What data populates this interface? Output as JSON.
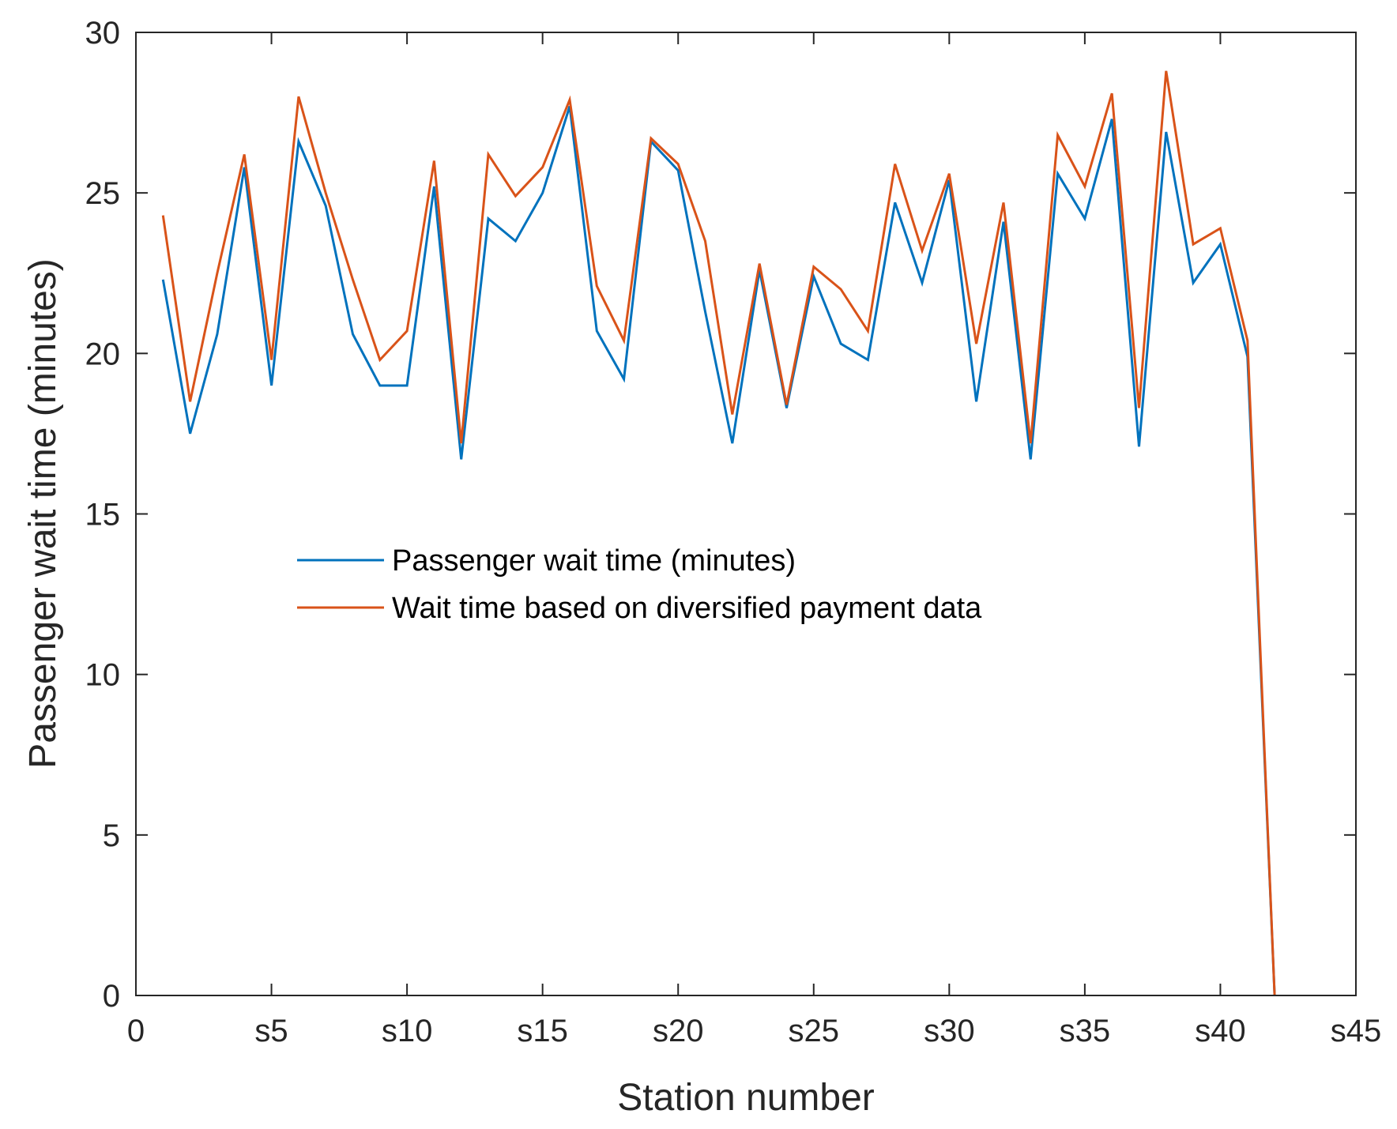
{
  "chart_data": {
    "type": "line",
    "title": "",
    "xlabel": "Station number",
    "ylabel": "Passenger wait time (minutes)",
    "xlim": [
      0,
      45
    ],
    "ylim": [
      0,
      30
    ],
    "x_ticks": [
      {
        "value": 0,
        "label": "0"
      },
      {
        "value": 5,
        "label": "s5"
      },
      {
        "value": 10,
        "label": "s10"
      },
      {
        "value": 15,
        "label": "s15"
      },
      {
        "value": 20,
        "label": "s20"
      },
      {
        "value": 25,
        "label": "s25"
      },
      {
        "value": 30,
        "label": "s30"
      },
      {
        "value": 35,
        "label": "s35"
      },
      {
        "value": 40,
        "label": "s40"
      },
      {
        "value": 45,
        "label": "s45"
      }
    ],
    "y_ticks": [
      {
        "value": 0,
        "label": "0"
      },
      {
        "value": 5,
        "label": "5"
      },
      {
        "value": 10,
        "label": "10"
      },
      {
        "value": 15,
        "label": "15"
      },
      {
        "value": 20,
        "label": "20"
      },
      {
        "value": 25,
        "label": "25"
      },
      {
        "value": 30,
        "label": "30"
      }
    ],
    "x": [
      1,
      2,
      3,
      4,
      5,
      6,
      7,
      8,
      9,
      10,
      11,
      12,
      13,
      14,
      15,
      16,
      17,
      18,
      19,
      20,
      21,
      22,
      23,
      24,
      25,
      26,
      27,
      28,
      29,
      30,
      31,
      32,
      33,
      34,
      35,
      36,
      37,
      38,
      39,
      40,
      41,
      42
    ],
    "series": [
      {
        "name": "Passenger wait time (minutes)",
        "color": "#0072BD",
        "values": [
          22.3,
          17.5,
          20.6,
          25.8,
          19.0,
          26.6,
          24.6,
          20.6,
          19.0,
          19.0,
          25.2,
          16.7,
          24.2,
          23.5,
          25.0,
          27.7,
          20.7,
          19.2,
          26.6,
          25.7,
          21.3,
          17.2,
          22.6,
          18.3,
          22.4,
          20.3,
          19.8,
          24.7,
          22.2,
          25.4,
          18.5,
          24.1,
          16.7,
          25.6,
          24.2,
          27.3,
          17.1,
          26.9,
          22.2,
          23.4,
          19.9,
          0.0
        ]
      },
      {
        "name": "Wait time based on diversified payment data",
        "color": "#D95319",
        "values": [
          24.3,
          18.5,
          22.5,
          26.2,
          19.8,
          28.0,
          25.0,
          22.3,
          19.8,
          20.7,
          26.0,
          17.2,
          26.2,
          24.9,
          25.8,
          27.9,
          22.1,
          20.4,
          26.7,
          25.9,
          23.5,
          18.1,
          22.8,
          18.4,
          22.7,
          22.0,
          20.7,
          25.9,
          23.2,
          25.6,
          20.3,
          24.7,
          17.2,
          26.8,
          25.2,
          28.1,
          18.3,
          28.8,
          23.4,
          23.9,
          20.4,
          0.0
        ]
      }
    ],
    "legend_position": "center-left",
    "grid": false
  }
}
